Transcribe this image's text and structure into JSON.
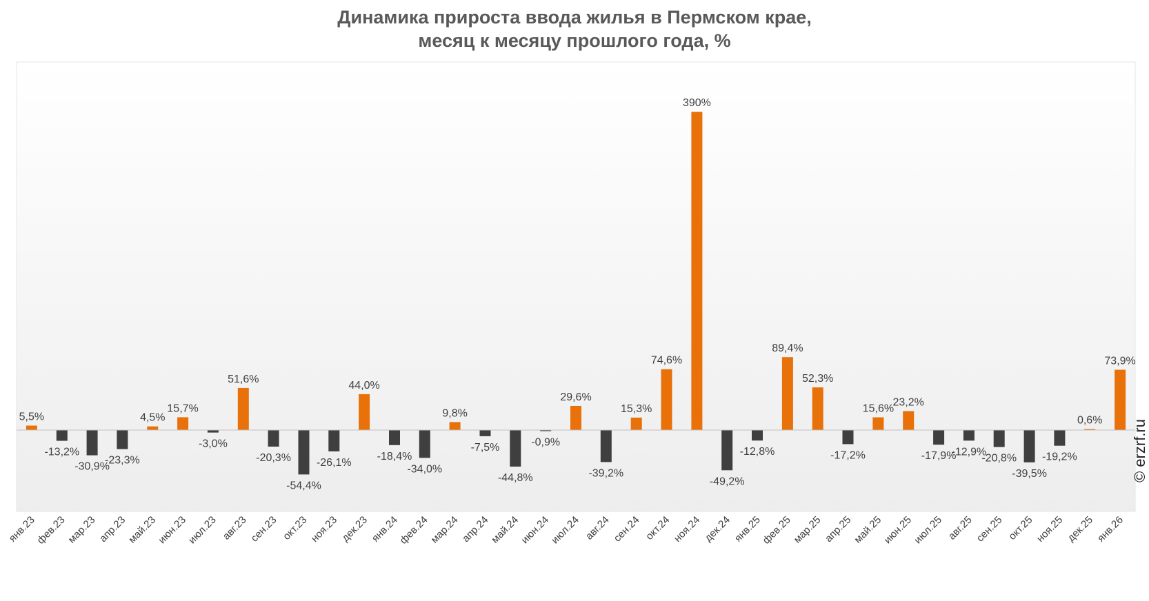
{
  "title_lines": [
    "Динамика прироста ввода жилья в Пермском крае,",
    "месяц к месяцу прошлого года, %"
  ],
  "watermark": "© erzrf.ru",
  "colors": {
    "positive": "#e8710a",
    "negative": "#3f3f3f",
    "axis": "#bfbfbf",
    "label": "#404040",
    "title": "#595959"
  },
  "chart_data": {
    "type": "bar",
    "title": "Динамика прироста ввода жилья в Пермском крае, месяц к месяцу прошлого года, %",
    "xlabel": "",
    "ylabel": "",
    "ylim": [
      -100,
      405
    ],
    "grid": false,
    "categories": [
      "янв.23",
      "фев.23",
      "мар.23",
      "апр.23",
      "май.23",
      "июн.23",
      "июл.23",
      "авг.23",
      "сен.23",
      "окт.23",
      "ноя.23",
      "дек.23",
      "янв.24",
      "фев.24",
      "мар.24",
      "апр.24",
      "май.24",
      "июн.24",
      "июл.24",
      "авг.24",
      "сен.24",
      "окт.24",
      "ноя.24",
      "дек.24",
      "янв.25",
      "фев.25",
      "мар.25",
      "апр.25",
      "май.25",
      "июн.25",
      "июл.25",
      "авг.25",
      "сен.25",
      "окт.25",
      "ноя.25",
      "дек.25",
      "янв.26"
    ],
    "values": [
      5.5,
      -13.2,
      -30.9,
      -23.3,
      4.5,
      15.7,
      -3.0,
      51.6,
      -20.3,
      -54.4,
      -26.1,
      44.0,
      -18.4,
      -34.0,
      9.8,
      -7.5,
      -44.8,
      -0.9,
      29.6,
      -39.2,
      15.3,
      74.6,
      390,
      -49.2,
      -12.8,
      89.4,
      52.3,
      -17.2,
      15.6,
      23.2,
      -17.9,
      -12.9,
      -20.8,
      -39.5,
      -19.2,
      0.6,
      73.9
    ],
    "labels": [
      "5,5%",
      "-13,2%",
      "-30,9%",
      "-23,3%",
      "4,5%",
      "15,7%",
      "-3,0%",
      "51,6%",
      "-20,3%",
      "-54,4%",
      "-26,1%",
      "44,0%",
      "-18,4%",
      "-34,0%",
      "9,8%",
      "-7,5%",
      "-44,8%",
      "-0,9%",
      "29,6%",
      "-39,2%",
      "15,3%",
      "74,6%",
      "390%",
      "-49,2%",
      "-12,8%",
      "89,4%",
      "52,3%",
      "-17,2%",
      "15,6%",
      "23,2%",
      "-17,9%",
      "-12,9%",
      "-20,8%",
      "-39,5%",
      "-19,2%",
      "0,6%",
      "73,9%"
    ]
  }
}
